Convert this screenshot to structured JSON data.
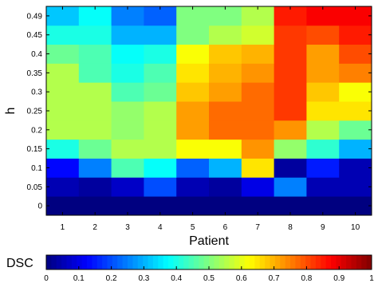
{
  "chart_data": {
    "type": "heatmap",
    "xlabel": "Patient",
    "ylabel": "h",
    "colorbar_label": "DSC",
    "x": [
      "1",
      "2",
      "3",
      "4",
      "5",
      "6",
      "7",
      "8",
      "9",
      "10"
    ],
    "y_ticks": [
      "0",
      "0.05",
      "0.1",
      "0.15",
      "0.2",
      "0.25",
      "0.3",
      "0.35",
      "0.4",
      "0.45",
      "0.49"
    ],
    "colorbar_ticks": [
      "0",
      "0.1",
      "0.2",
      "0.3",
      "0.4",
      "0.5",
      "0.6",
      "0.7",
      "0.8",
      "0.9",
      "1"
    ],
    "clim": [
      0,
      1
    ],
    "colormap": "jet",
    "values": [
      [
        0.0,
        0.0,
        0.0,
        0.0,
        0.0,
        0.0,
        0.0,
        0.0,
        0.0,
        0.0
      ],
      [
        0.05,
        0.03,
        0.07,
        0.2,
        0.05,
        0.03,
        0.1,
        0.25,
        0.05,
        0.05
      ],
      [
        0.13,
        0.25,
        0.45,
        0.38,
        0.22,
        0.3,
        0.65,
        0.03,
        0.15,
        0.05
      ],
      [
        0.4,
        0.48,
        0.55,
        0.55,
        0.62,
        0.62,
        0.73,
        0.52,
        0.42,
        0.3
      ],
      [
        0.55,
        0.55,
        0.52,
        0.55,
        0.72,
        0.77,
        0.77,
        0.73,
        0.55,
        0.48
      ],
      [
        0.55,
        0.55,
        0.52,
        0.55,
        0.72,
        0.77,
        0.77,
        0.82,
        0.65,
        0.65
      ],
      [
        0.55,
        0.55,
        0.45,
        0.48,
        0.68,
        0.72,
        0.77,
        0.82,
        0.68,
        0.62
      ],
      [
        0.55,
        0.45,
        0.4,
        0.45,
        0.65,
        0.7,
        0.73,
        0.82,
        0.72,
        0.75
      ],
      [
        0.48,
        0.45,
        0.38,
        0.4,
        0.62,
        0.68,
        0.7,
        0.82,
        0.72,
        0.8
      ],
      [
        0.4,
        0.4,
        0.3,
        0.3,
        0.5,
        0.55,
        0.58,
        0.82,
        0.8,
        0.85
      ],
      [
        0.32,
        0.38,
        0.25,
        0.22,
        0.5,
        0.5,
        0.55,
        0.85,
        0.88,
        0.88
      ]
    ]
  }
}
